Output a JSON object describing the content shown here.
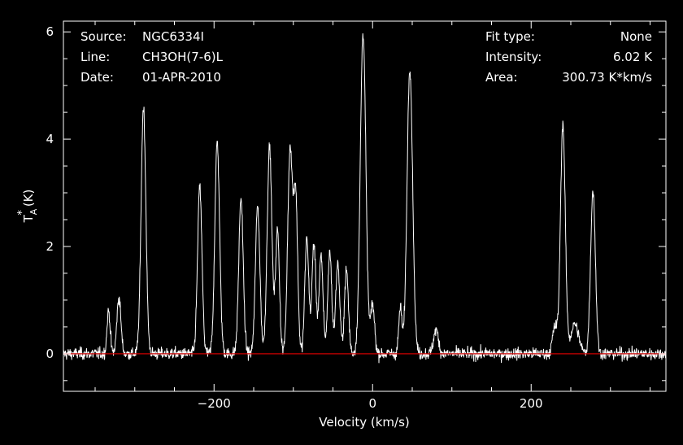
{
  "info": {
    "left": [
      {
        "label": "Source:",
        "value": "NGC6334I"
      },
      {
        "label": "Line:",
        "value": "CH3OH(7-6)L"
      },
      {
        "label": "Date:",
        "value": "01-APR-2010"
      }
    ],
    "right": [
      {
        "label": "Fit type:",
        "value": "None"
      },
      {
        "label": "Intensity:",
        "value": "6.02 K"
      },
      {
        "label": "Area:",
        "value": "300.73 K*km/s"
      }
    ]
  },
  "chart_data": {
    "type": "line",
    "xlabel": "Velocity (km/s)",
    "ylabel_main": "T",
    "ylabel_sup": "*",
    "ylabel_sub": "A",
    "ylabel_unit": "(K)",
    "xlim": [
      -390,
      370
    ],
    "ylim": [
      -0.7,
      6.2
    ],
    "xticks": [
      -200,
      0,
      200
    ],
    "xtick_labels": [
      "−200",
      "0",
      "200"
    ],
    "yticks": [
      0,
      2,
      4,
      6
    ],
    "ytick_labels": [
      "0",
      "2",
      "4",
      "6"
    ],
    "baseline_y": 0,
    "baseline_color": "#cc0000",
    "line_color": "#ffffff",
    "background": "#000000",
    "noise_rms": 0.08,
    "peaks": [
      {
        "x": -333,
        "y": 0.8,
        "w": 2.0
      },
      {
        "x": -320,
        "y": 1.05,
        "w": 2.5
      },
      {
        "x": -289,
        "y": 4.6,
        "w": 3.0
      },
      {
        "x": -218,
        "y": 3.1,
        "w": 2.8
      },
      {
        "x": -196,
        "y": 3.95,
        "w": 3.0
      },
      {
        "x": -166,
        "y": 2.9,
        "w": 2.8
      },
      {
        "x": -145,
        "y": 2.75,
        "w": 2.8
      },
      {
        "x": -130,
        "y": 3.85,
        "w": 3.0
      },
      {
        "x": -120,
        "y": 2.3,
        "w": 2.5
      },
      {
        "x": -104,
        "y": 3.85,
        "w": 3.0
      },
      {
        "x": -97,
        "y": 2.9,
        "w": 2.5
      },
      {
        "x": -83,
        "y": 2.15,
        "w": 2.5
      },
      {
        "x": -74,
        "y": 2.05,
        "w": 2.5
      },
      {
        "x": -65,
        "y": 1.8,
        "w": 2.5
      },
      {
        "x": -54,
        "y": 1.9,
        "w": 2.5
      },
      {
        "x": -44,
        "y": 1.7,
        "w": 2.5
      },
      {
        "x": -33,
        "y": 1.55,
        "w": 2.5
      },
      {
        "x": -12,
        "y": 6.0,
        "w": 3.5
      },
      {
        "x": 0,
        "y": 0.9,
        "w": 2.5
      },
      {
        "x": 35,
        "y": 0.85,
        "w": 2.0
      },
      {
        "x": 47,
        "y": 5.35,
        "w": 3.5
      },
      {
        "x": 80,
        "y": 0.45,
        "w": 3.0
      },
      {
        "x": 230,
        "y": 0.5,
        "w": 3.0
      },
      {
        "x": 240,
        "y": 4.3,
        "w": 3.0
      },
      {
        "x": 255,
        "y": 0.55,
        "w": 5.0
      },
      {
        "x": 278,
        "y": 3.05,
        "w": 3.0
      }
    ]
  }
}
